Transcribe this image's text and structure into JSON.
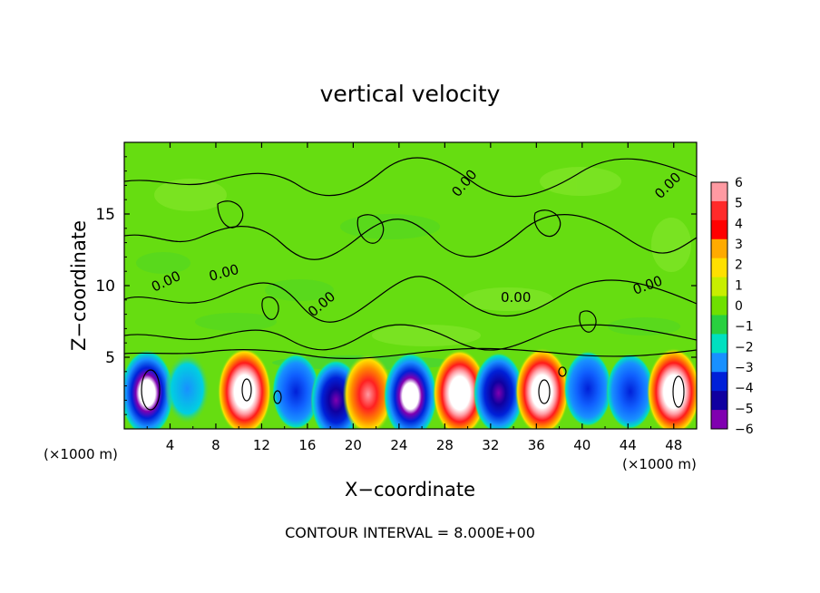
{
  "chart_data": {
    "type": "heatmap",
    "title": "vertical velocity",
    "xlabel": "X−coordinate",
    "ylabel": "Z−coordinate",
    "x_unit_left": "(×1000 m)",
    "x_unit_right": "(×1000 m)",
    "xlim": [
      0,
      50
    ],
    "ylim": [
      0,
      20
    ],
    "xticks": [
      "4",
      "8",
      "12",
      "16",
      "20",
      "24",
      "28",
      "32",
      "36",
      "40",
      "44",
      "48"
    ],
    "xtick_values": [
      4,
      8,
      12,
      16,
      20,
      24,
      28,
      32,
      36,
      40,
      44,
      48
    ],
    "yticks": [
      "5",
      "10",
      "15"
    ],
    "ytick_values": [
      5,
      10,
      15
    ],
    "colorbar": {
      "ticks": [
        "6",
        "5",
        "4",
        "3",
        "2",
        "1",
        "0",
        "−1",
        "−2",
        "−3",
        "−4",
        "−5",
        "−6"
      ],
      "colors": [
        "#ff9aa2",
        "#ff2a2a",
        "#ff0000",
        "#ffaa00",
        "#ffe000",
        "#c8ee00",
        "#6fe000",
        "#28d040",
        "#00e0c0",
        "#1890ff",
        "#0020d8",
        "#1000a0",
        "#8000b0"
      ]
    },
    "contour_label": "0.00",
    "contour_interval_text": "CONTOUR INTERVAL = 8.000E+00",
    "cells": [
      {
        "x": 2.0,
        "z": 2.5,
        "w": -6
      },
      {
        "x": 5.5,
        "z": 2.8,
        "w": -3
      },
      {
        "x": 10.5,
        "z": 2.6,
        "w": 6
      },
      {
        "x": 15.0,
        "z": 2.6,
        "w": -4
      },
      {
        "x": 18.5,
        "z": 2.0,
        "w": -5
      },
      {
        "x": 21.3,
        "z": 2.4,
        "w": 5
      },
      {
        "x": 25.0,
        "z": 2.3,
        "w": -6
      },
      {
        "x": 29.3,
        "z": 2.5,
        "w": 6
      },
      {
        "x": 32.7,
        "z": 2.5,
        "w": -5
      },
      {
        "x": 36.5,
        "z": 2.6,
        "w": 6
      },
      {
        "x": 40.5,
        "z": 2.8,
        "w": -4
      },
      {
        "x": 44.2,
        "z": 2.6,
        "w": -4
      },
      {
        "x": 48.0,
        "z": 2.6,
        "w": 6
      }
    ]
  }
}
